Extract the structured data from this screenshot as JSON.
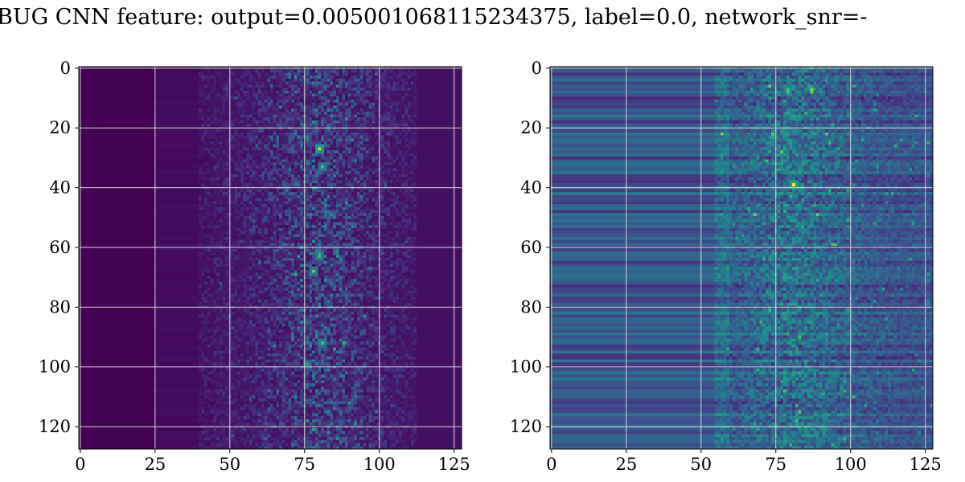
{
  "figure": {
    "title": "BUG CNN feature: output=0.005001068115234375, label=0.0, network_snr=-"
  },
  "chart_data": [
    {
      "type": "heatmap",
      "title": "",
      "xlabel": "",
      "ylabel": "",
      "xlim": [
        0,
        127
      ],
      "ylim": [
        127,
        0
      ],
      "shape": [
        128,
        128
      ],
      "colormap": "viridis",
      "grid": true,
      "x_ticks": [
        0,
        25,
        50,
        75,
        100,
        125
      ],
      "y_ticks": [
        0,
        20,
        40,
        60,
        80,
        100,
        120
      ],
      "description_values": {
        "dark_region_x_end": 45,
        "noisy_band_x": [
          45,
          110
        ],
        "bright_column_x": 80
      },
      "hotspots": [
        {
          "x": 80,
          "y": 27,
          "value": 0.95
        },
        {
          "x": 81,
          "y": 33,
          "value": 0.7
        },
        {
          "x": 80,
          "y": 63,
          "value": 0.7
        },
        {
          "x": 78,
          "y": 68,
          "value": 0.75
        },
        {
          "x": 81,
          "y": 92,
          "value": 0.7
        },
        {
          "x": 76,
          "y": 99,
          "value": 0.55
        },
        {
          "x": 84,
          "y": 49,
          "value": 0.5
        }
      ]
    },
    {
      "type": "heatmap",
      "title": "",
      "xlabel": "",
      "ylabel": "",
      "xlim": [
        0,
        127
      ],
      "ylim": [
        127,
        0
      ],
      "shape": [
        128,
        128
      ],
      "colormap": "viridis",
      "grid": true,
      "x_ticks": [
        0,
        25,
        50,
        75,
        100,
        125
      ],
      "y_ticks": [
        0,
        20,
        40,
        60,
        80,
        100,
        120
      ],
      "description_values": {
        "striped_rows": true,
        "noisy_band_x": [
          65,
          127
        ],
        "bright_column_x": 81
      },
      "hotspots": [
        {
          "x": 81,
          "y": 39,
          "value": 1.0
        },
        {
          "x": 80,
          "y": 25,
          "value": 0.6
        },
        {
          "x": 82,
          "y": 76,
          "value": 0.55
        },
        {
          "x": 80,
          "y": 95,
          "value": 0.5
        },
        {
          "x": 110,
          "y": 47,
          "value": 0.45
        },
        {
          "x": 88,
          "y": 82,
          "value": 0.5
        }
      ]
    }
  ]
}
